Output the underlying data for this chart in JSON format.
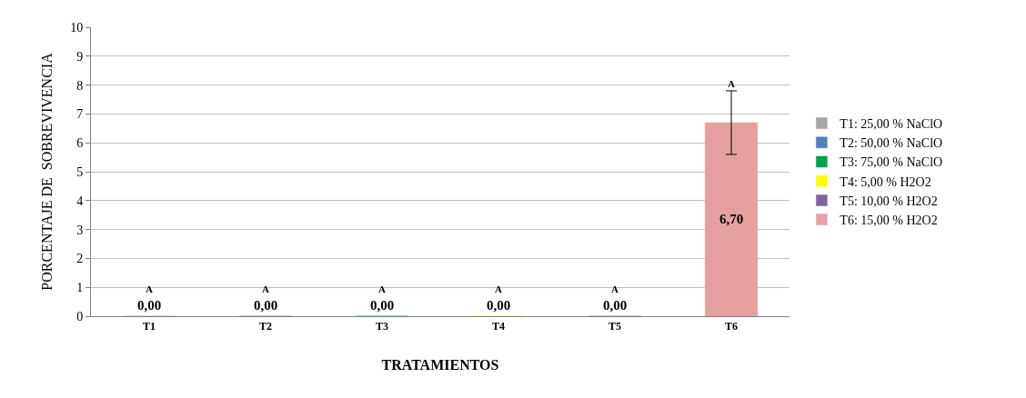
{
  "chart_data": {
    "type": "bar",
    "xlabel": "TRATAMIENTOS",
    "ylabel": "PORCENTAJE DE  SOBREVIVENCIA",
    "categories": [
      "T1",
      "T2",
      "T3",
      "T4",
      "T5",
      "T6"
    ],
    "series": [
      {
        "name": "T1: 25,00 % NaClO",
        "color": "#a6a6a6",
        "values": [
          0,
          null,
          null,
          null,
          null,
          null
        ],
        "value_labels": [
          "0,00",
          null,
          null,
          null,
          null,
          null
        ]
      },
      {
        "name": "T2: 50,00 % NaClO",
        "color": "#4f81bd",
        "values": [
          null,
          0,
          null,
          null,
          null,
          null
        ],
        "value_labels": [
          null,
          "0,00",
          null,
          null,
          null,
          null
        ]
      },
      {
        "name": "T3: 75,00 % NaClO",
        "color": "#00a050",
        "values": [
          null,
          null,
          0,
          null,
          null,
          null
        ],
        "value_labels": [
          null,
          null,
          "0,00",
          null,
          null,
          null
        ]
      },
      {
        "name": "T4: 5,00 % H2O2",
        "color": "#ffff00",
        "values": [
          null,
          null,
          null,
          0,
          null,
          null
        ],
        "value_labels": [
          null,
          null,
          null,
          "0,00",
          null,
          null
        ]
      },
      {
        "name": "T5: 10,00 % H2O2",
        "color": "#8064a2",
        "values": [
          null,
          null,
          null,
          null,
          0,
          null
        ],
        "value_labels": [
          null,
          null,
          null,
          null,
          "0,00",
          null
        ]
      },
      {
        "name": "T6: 15,00 % H2O2",
        "color": "#e6a0a0",
        "values": [
          null,
          null,
          null,
          null,
          null,
          6.7
        ],
        "value_labels": [
          null,
          null,
          null,
          null,
          null,
          "6,70"
        ],
        "errors": [
          null,
          null,
          null,
          null,
          null,
          1.1
        ]
      }
    ],
    "annotations": [
      "A",
      "A",
      "A",
      "A",
      "A",
      "A"
    ],
    "ylim": [
      0,
      10
    ],
    "yticks": [
      0,
      1,
      2,
      3,
      4,
      5,
      6,
      7,
      8,
      9,
      10
    ],
    "grid": "y",
    "legend": "right"
  }
}
